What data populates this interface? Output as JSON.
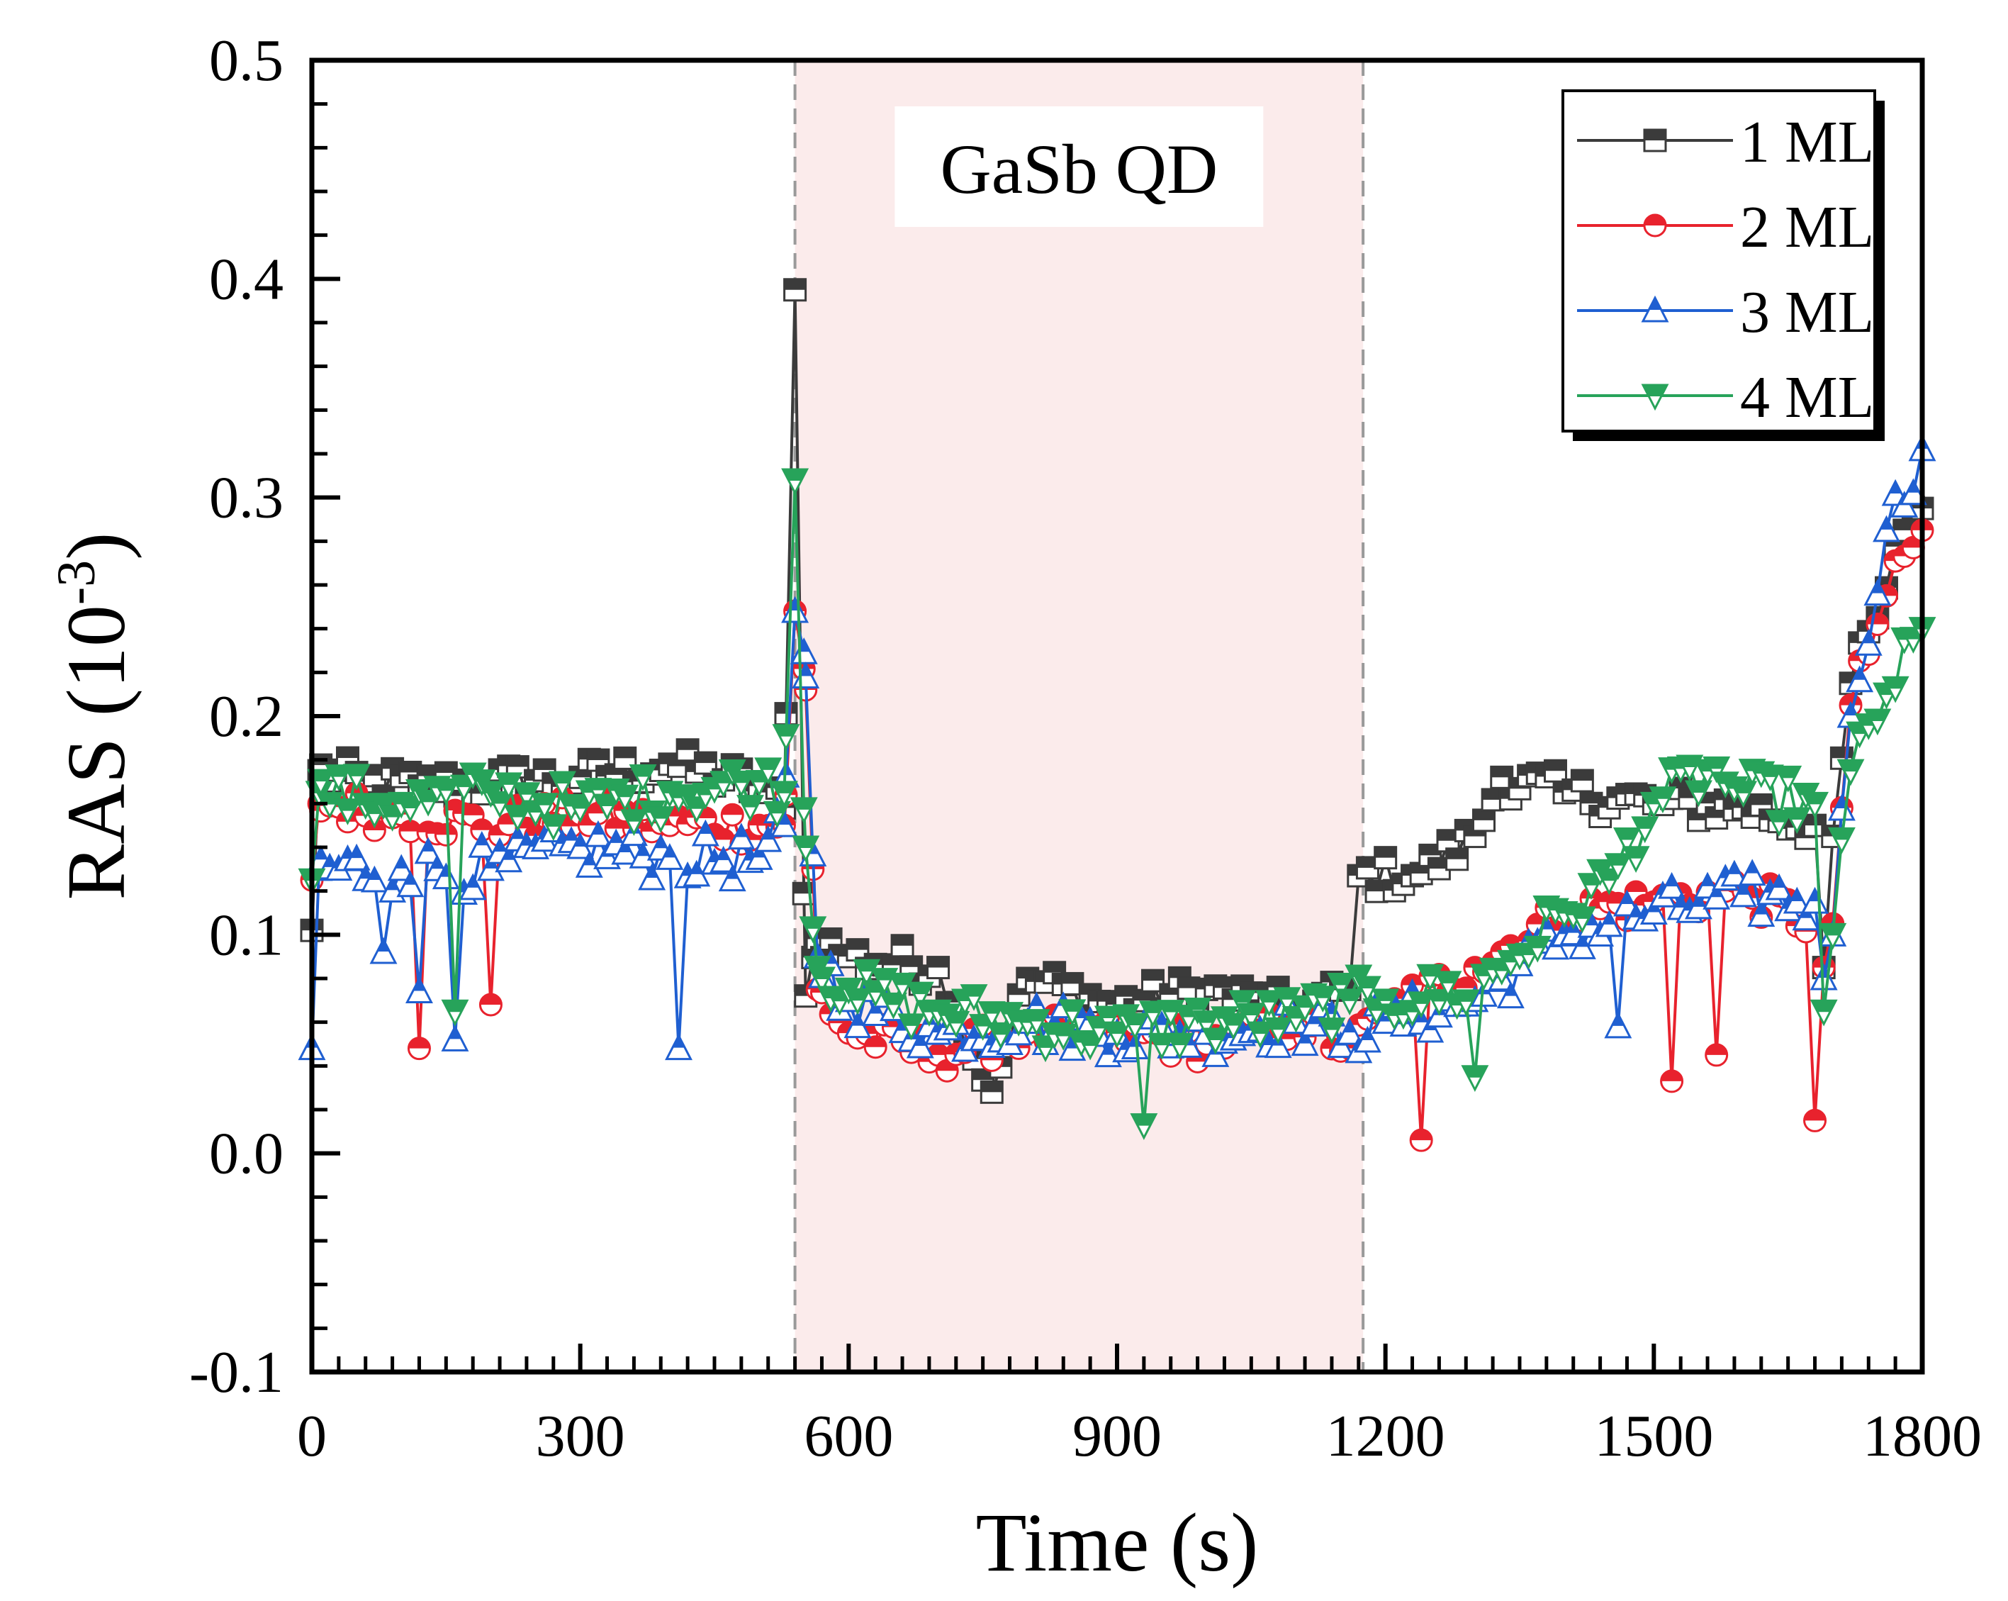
{
  "chart_data": {
    "type": "line",
    "title": "",
    "xlabel": "Time (s)",
    "ylabel_main": "RAS (10",
    "ylabel_sup": "-3",
    "ylabel_close": ")",
    "xlim": [
      0,
      1800
    ],
    "ylim": [
      -0.1,
      0.5
    ],
    "xticks": [
      0,
      300,
      600,
      900,
      1200,
      1500,
      1800
    ],
    "xtick_labels": [
      "0",
      "300",
      "600",
      "900",
      "1200",
      "1500",
      "1800"
    ],
    "yticks": [
      -0.1,
      0.0,
      0.1,
      0.2,
      0.3,
      0.4,
      0.5
    ],
    "ytick_labels": [
      "-0.1",
      "0.0",
      "0.1",
      "0.2",
      "0.3",
      "0.4",
      "0.5"
    ],
    "legend_position": "top-right",
    "region": {
      "label": "GaSb QD",
      "x_start": 540,
      "x_end": 1175,
      "color": "#f6d2d2"
    },
    "series": [
      {
        "name": "1 ML",
        "color": "#3b3b3b",
        "marker": "square",
        "anchors": [
          [
            0,
            0.102
          ],
          [
            8,
            0.175
          ],
          [
            60,
            0.17
          ],
          [
            120,
            0.168
          ],
          [
            200,
            0.17
          ],
          [
            300,
            0.172
          ],
          [
            400,
            0.178
          ],
          [
            500,
            0.168
          ],
          [
            528,
            0.158
          ],
          [
            540,
            0.395
          ],
          [
            552,
            0.072
          ],
          [
            565,
            0.098
          ],
          [
            600,
            0.09
          ],
          [
            700,
            0.085
          ],
          [
            760,
            0.028
          ],
          [
            800,
            0.08
          ],
          [
            900,
            0.068
          ],
          [
            1000,
            0.075
          ],
          [
            1100,
            0.065
          ],
          [
            1160,
            0.075
          ],
          [
            1170,
            0.127
          ],
          [
            1240,
            0.128
          ],
          [
            1300,
            0.145
          ],
          [
            1330,
            0.172
          ],
          [
            1400,
            0.165
          ],
          [
            1500,
            0.16
          ],
          [
            1600,
            0.158
          ],
          [
            1680,
            0.15
          ],
          [
            1690,
            0.085
          ],
          [
            1700,
            0.145
          ],
          [
            1720,
            0.215
          ],
          [
            1750,
            0.245
          ],
          [
            1780,
            0.285
          ],
          [
            1800,
            0.295
          ]
        ],
        "noise": 0.009
      },
      {
        "name": "2 ML",
        "color": "#e8222d",
        "marker": "circle",
        "anchors": [
          [
            0,
            0.125
          ],
          [
            8,
            0.16
          ],
          [
            100,
            0.155
          ],
          [
            200,
            0.15
          ],
          [
            300,
            0.155
          ],
          [
            400,
            0.15
          ],
          [
            500,
            0.15
          ],
          [
            528,
            0.15
          ],
          [
            540,
            0.248
          ],
          [
            552,
            0.212
          ],
          [
            565,
            0.075
          ],
          [
            600,
            0.055
          ],
          [
            700,
            0.045
          ],
          [
            800,
            0.055
          ],
          [
            900,
            0.055
          ],
          [
            1000,
            0.05
          ],
          [
            1100,
            0.06
          ],
          [
            1160,
            0.048
          ],
          [
            1200,
            0.065
          ],
          [
            1300,
            0.085
          ],
          [
            1400,
            0.11
          ],
          [
            1500,
            0.115
          ],
          [
            1600,
            0.12
          ],
          [
            1680,
            0.105
          ],
          [
            1690,
            0.085
          ],
          [
            1700,
            0.105
          ],
          [
            1720,
            0.205
          ],
          [
            1760,
            0.255
          ],
          [
            1800,
            0.285
          ]
        ],
        "noise": 0.009,
        "outliers": [
          [
            118,
            0.048
          ],
          [
            198,
            0.068
          ],
          [
            1240,
            0.006
          ],
          [
            1520,
            0.033
          ],
          [
            1570,
            0.045
          ],
          [
            1675,
            0.015
          ]
        ]
      },
      {
        "name": "3 ML",
        "color": "#1f5fd1",
        "marker": "triangle-up",
        "anchors": [
          [
            0,
            0.048
          ],
          [
            8,
            0.13
          ],
          [
            100,
            0.13
          ],
          [
            200,
            0.13
          ],
          [
            300,
            0.14
          ],
          [
            400,
            0.135
          ],
          [
            500,
            0.135
          ],
          [
            528,
            0.15
          ],
          [
            540,
            0.248
          ],
          [
            552,
            0.218
          ],
          [
            565,
            0.09
          ],
          [
            600,
            0.07
          ],
          [
            700,
            0.055
          ],
          [
            800,
            0.06
          ],
          [
            900,
            0.055
          ],
          [
            1000,
            0.055
          ],
          [
            1100,
            0.06
          ],
          [
            1160,
            0.055
          ],
          [
            1200,
            0.06
          ],
          [
            1300,
            0.07
          ],
          [
            1400,
            0.1
          ],
          [
            1500,
            0.11
          ],
          [
            1600,
            0.118
          ],
          [
            1680,
            0.115
          ],
          [
            1690,
            0.08
          ],
          [
            1700,
            0.1
          ],
          [
            1720,
            0.2
          ],
          [
            1760,
            0.285
          ],
          [
            1800,
            0.322
          ]
        ],
        "noise": 0.011,
        "outliers": [
          [
            78,
            0.092
          ],
          [
            118,
            0.074
          ],
          [
            158,
            0.052
          ],
          [
            405,
            0.048
          ],
          [
            1460,
            0.058
          ]
        ]
      },
      {
        "name": "4 ML",
        "color": "#27a35a",
        "marker": "triangle-down",
        "anchors": [
          [
            0,
            0.125
          ],
          [
            8,
            0.165
          ],
          [
            100,
            0.16
          ],
          [
            200,
            0.165
          ],
          [
            300,
            0.158
          ],
          [
            400,
            0.165
          ],
          [
            500,
            0.17
          ],
          [
            528,
            0.165
          ],
          [
            540,
            0.308
          ],
          [
            552,
            0.14
          ],
          [
            565,
            0.085
          ],
          [
            600,
            0.075
          ],
          [
            700,
            0.065
          ],
          [
            800,
            0.06
          ],
          [
            900,
            0.055
          ],
          [
            1000,
            0.06
          ],
          [
            1100,
            0.062
          ],
          [
            1160,
            0.07
          ],
          [
            1200,
            0.07
          ],
          [
            1300,
            0.075
          ],
          [
            1400,
            0.11
          ],
          [
            1450,
            0.125
          ],
          [
            1500,
            0.16
          ],
          [
            1560,
            0.175
          ],
          [
            1600,
            0.165
          ],
          [
            1680,
            0.16
          ],
          [
            1690,
            0.065
          ],
          [
            1700,
            0.1
          ],
          [
            1720,
            0.175
          ],
          [
            1760,
            0.21
          ],
          [
            1800,
            0.24
          ]
        ],
        "noise": 0.011,
        "outliers": [
          [
            158,
            0.065
          ],
          [
            930,
            0.013
          ],
          [
            1300,
            0.035
          ]
        ]
      }
    ]
  }
}
